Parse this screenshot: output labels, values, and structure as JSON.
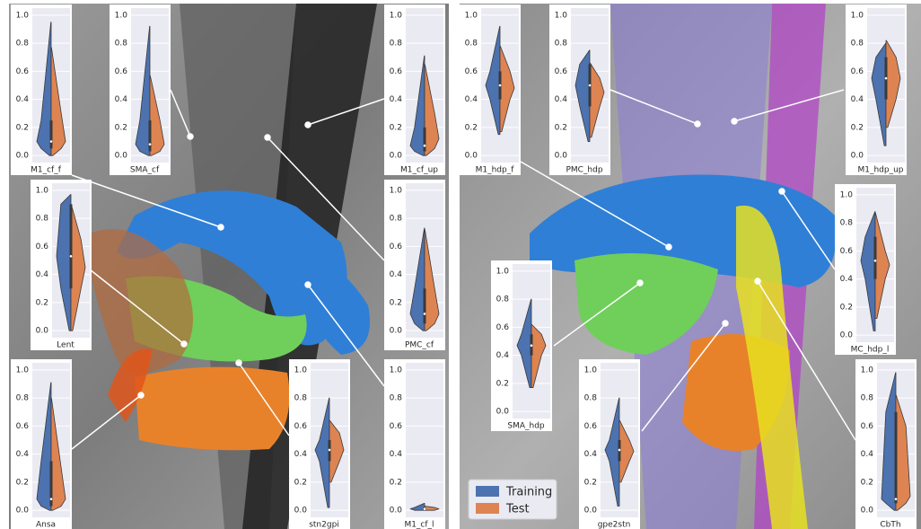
{
  "legend": [
    {
      "name": "Training",
      "color": "#4c72b0"
    },
    {
      "name": "Test",
      "color": "#dd8452"
    }
  ],
  "chart_data": [
    {
      "type": "violin",
      "xlabel": "M1_cf_f",
      "ylim": [
        -0.05,
        1.05
      ],
      "yticks": [
        {
          "value": 0,
          "label": "0.0"
        },
        0.2,
        0.4,
        0.6,
        0.8,
        {
          "value": 1,
          "label": "1.0"
        }
      ],
      "series": [
        {
          "values": [
            0,
            0.05,
            0.1,
            0.25,
            0.95
          ]
        },
        {
          "values": [
            0,
            0.05,
            0.1,
            0.3,
            0.77
          ]
        }
      ]
    },
    {
      "type": "violin",
      "xlabel": "SMA_cf",
      "ylim": [
        -0.05,
        1.05
      ],
      "yticks": [
        {
          "value": 0,
          "label": "0.0"
        },
        0.2,
        0.4,
        0.6,
        0.8,
        {
          "value": 1,
          "label": "1.0"
        }
      ],
      "series": [
        {
          "values": [
            0,
            0.03,
            0.08,
            0.25,
            0.92
          ]
        },
        {
          "values": [
            0,
            0.03,
            0.08,
            0.25,
            0.57
          ]
        }
      ]
    },
    {
      "type": "violin",
      "xlabel": "M1_cf_up",
      "ylim": [
        -0.05,
        1.05
      ],
      "yticks": [
        {
          "value": 0,
          "label": "0.0"
        },
        0.2,
        0.4,
        0.6,
        0.8,
        {
          "value": 1,
          "label": "1.0"
        }
      ],
      "series": [
        {
          "values": [
            0,
            0.03,
            0.07,
            0.2,
            0.71
          ]
        },
        {
          "values": [
            0,
            0.05,
            0.12,
            0.3,
            0.65
          ]
        }
      ]
    },
    {
      "type": "violin",
      "xlabel": "Lent",
      "ylim": [
        -0.05,
        1.05
      ],
      "yticks": [
        {
          "value": 0,
          "label": "0.0"
        },
        0.2,
        0.4,
        0.6,
        0.8,
        {
          "value": 1,
          "label": "1.0"
        }
      ],
      "series": [
        {
          "values": [
            0,
            0.3,
            0.53,
            0.9,
            0.97
          ]
        },
        {
          "values": [
            0,
            0.3,
            0.45,
            0.65,
            0.9
          ]
        }
      ]
    },
    {
      "type": "violin",
      "xlabel": "PMC_cf",
      "ylim": [
        -0.05,
        1.05
      ],
      "yticks": [
        {
          "value": 0,
          "label": "0.0"
        },
        0.2,
        0.4,
        0.6,
        0.8,
        {
          "value": 1,
          "label": "1.0"
        }
      ],
      "series": [
        {
          "values": [
            0,
            0.05,
            0.12,
            0.3,
            0.73
          ]
        },
        {
          "values": [
            0,
            0.05,
            0.12,
            0.3,
            0.72
          ]
        }
      ]
    },
    {
      "type": "violin",
      "xlabel": "Ansa",
      "ylim": [
        -0.05,
        1.05
      ],
      "yticks": [
        {
          "value": 0,
          "label": "0.0"
        },
        0.2,
        0.4,
        0.6,
        0.8,
        {
          "value": 1,
          "label": "1.0"
        }
      ],
      "series": [
        {
          "values": [
            0,
            0.03,
            0.08,
            0.35,
            0.91
          ]
        },
        {
          "values": [
            0,
            0.03,
            0.08,
            0.3,
            0.8
          ]
        }
      ]
    },
    {
      "type": "violin",
      "xlabel": "stn2gpi",
      "ylim": [
        -0.05,
        1.05
      ],
      "yticks": [
        {
          "value": 0,
          "label": "0.0"
        },
        0.2,
        0.4,
        0.6,
        0.8,
        {
          "value": 1,
          "label": "1.0"
        }
      ],
      "series": [
        {
          "values": [
            0.02,
            0.35,
            0.43,
            0.5,
            0.8
          ]
        },
        {
          "values": [
            0.2,
            0.35,
            0.43,
            0.55,
            0.64
          ]
        }
      ]
    },
    {
      "type": "violin",
      "xlabel": "M1_cf_l",
      "ylim": [
        -0.05,
        1.05
      ],
      "yticks": [
        {
          "value": 0,
          "label": "0.0"
        },
        0.2,
        0.4,
        0.6,
        0.8,
        {
          "value": 1,
          "label": "1.0"
        }
      ],
      "series": [
        {
          "values": [
            0,
            0,
            0.01,
            0.02,
            0.05
          ]
        },
        {
          "values": [
            0,
            0,
            0.01,
            0.02,
            0.03
          ]
        }
      ]
    },
    {
      "type": "violin",
      "xlabel": "M1_hdp_f",
      "ylim": [
        -0.05,
        1.05
      ],
      "yticks": [
        {
          "value": 0,
          "label": "0.0"
        },
        0.2,
        0.4,
        0.6,
        0.8,
        {
          "value": 1,
          "label": "1.0"
        }
      ],
      "series": [
        {
          "values": [
            0.15,
            0.4,
            0.5,
            0.6,
            0.92
          ]
        },
        {
          "values": [
            0.17,
            0.4,
            0.48,
            0.6,
            0.78
          ]
        }
      ]
    },
    {
      "type": "violin",
      "xlabel": "PMC_hdp",
      "ylim": [
        -0.05,
        1.05
      ],
      "yticks": [
        {
          "value": 0,
          "label": "0.0"
        },
        0.2,
        0.4,
        0.6,
        0.8,
        {
          "value": 1,
          "label": "1.0"
        }
      ],
      "series": [
        {
          "values": [
            0.1,
            0.35,
            0.5,
            0.65,
            0.75
          ]
        },
        {
          "values": [
            0.13,
            0.35,
            0.45,
            0.55,
            0.66
          ]
        }
      ]
    },
    {
      "type": "violin",
      "xlabel": "M1_hdp_up",
      "ylim": [
        -0.05,
        1.05
      ],
      "yticks": [
        {
          "value": 0,
          "label": "0.0"
        },
        0.2,
        0.4,
        0.6,
        0.8,
        {
          "value": 1,
          "label": "1.0"
        }
      ],
      "series": [
        {
          "values": [
            0.07,
            0.4,
            0.55,
            0.7,
            0.8
          ]
        },
        {
          "values": [
            0.2,
            0.4,
            0.55,
            0.7,
            0.82
          ]
        }
      ]
    },
    {
      "type": "violin",
      "xlabel": "MC_hdp_l",
      "ylim": [
        -0.05,
        1.05
      ],
      "yticks": [
        {
          "value": 0,
          "label": "0.0"
        },
        0.2,
        0.4,
        0.6,
        0.8,
        {
          "value": 1,
          "label": "1.0"
        }
      ],
      "series": [
        {
          "values": [
            0.03,
            0.4,
            0.53,
            0.7,
            0.88
          ]
        },
        {
          "values": [
            0.12,
            0.4,
            0.5,
            0.6,
            0.87
          ]
        }
      ]
    },
    {
      "type": "violin",
      "xlabel": "SMA_hdp",
      "ylim": [
        -0.05,
        1.05
      ],
      "yticks": [
        {
          "value": 0,
          "label": "0.0"
        },
        0.2,
        0.4,
        0.6,
        0.8,
        {
          "value": 1,
          "label": "1.0"
        }
      ],
      "series": [
        {
          "values": [
            0.17,
            0.4,
            0.47,
            0.55,
            0.8
          ]
        },
        {
          "values": [
            0.17,
            0.4,
            0.47,
            0.55,
            0.62
          ]
        }
      ]
    },
    {
      "type": "violin",
      "xlabel": "gpe2stn",
      "ylim": [
        -0.05,
        1.05
      ],
      "yticks": [
        {
          "value": 0,
          "label": "0.0"
        },
        0.2,
        0.4,
        0.6,
        0.8,
        {
          "value": 1,
          "label": "1.0"
        }
      ],
      "series": [
        {
          "values": [
            0.03,
            0.35,
            0.43,
            0.5,
            0.8
          ]
        },
        {
          "values": [
            0.2,
            0.35,
            0.42,
            0.5,
            0.64
          ]
        }
      ]
    },
    {
      "type": "violin",
      "xlabel": "CbTh",
      "ylim": [
        -0.05,
        1.05
      ],
      "yticks": [
        {
          "value": 0,
          "label": "0.0"
        },
        0.2,
        0.4,
        0.6,
        0.8,
        {
          "value": 1,
          "label": "1.0"
        }
      ],
      "series": [
        {
          "values": [
            0,
            0.05,
            0.08,
            0.7,
            0.98
          ]
        },
        {
          "values": [
            0,
            0.05,
            0.1,
            0.6,
            0.82
          ]
        }
      ]
    }
  ]
}
